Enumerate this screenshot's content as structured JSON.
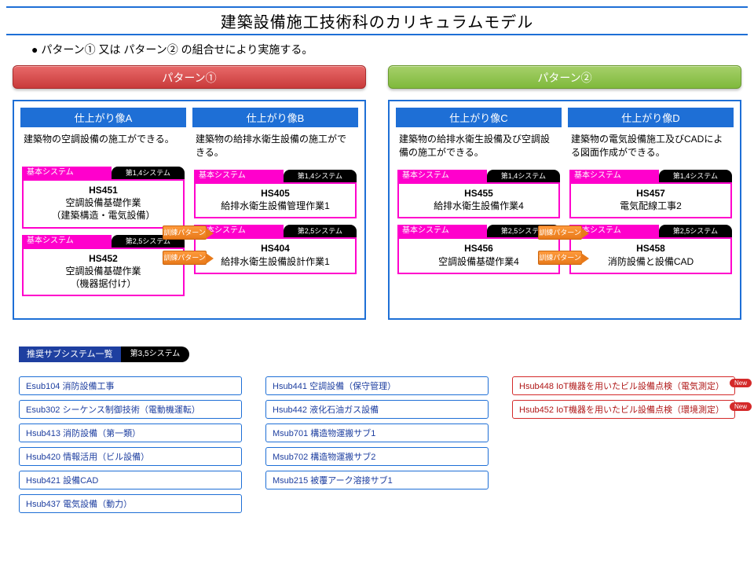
{
  "title": "建築設備施工技術科のカリキュラムモデル",
  "subtitle": "● パターン① 又は パターン② の組合せにより実施する。",
  "colors": {
    "primary_blue": "#1e6fd6",
    "dark_blue": "#1e3fa0",
    "magenta": "#ff00cc",
    "black": "#000000",
    "red_header": "#c83a3a",
    "green_header": "#7fb93c",
    "orange": "#e87a1a",
    "badge_red": "#d42a2a"
  },
  "tags": {
    "base_label": "基本システム",
    "sys14": "第1,4システム",
    "sys25": "第2,5システム",
    "sys35": "第3,5システム"
  },
  "connector_label": "訓練パターン",
  "patterns": [
    {
      "header": "パターン①",
      "header_class": "ph-red",
      "cols": [
        {
          "header": "仕上がり像A",
          "desc": "建築物の空調設備の施工ができる。",
          "modules": [
            {
              "sys": "sys14",
              "code": "HS451",
              "name": "空調設備基礎作業\n（建築構造・電気設備）"
            },
            {
              "sys": "sys25",
              "code": "HS452",
              "name": "空調設備基礎作業\n（機器据付け）"
            }
          ]
        },
        {
          "header": "仕上がり像B",
          "desc": "建築物の給排水衛生設備の施工ができる。",
          "modules": [
            {
              "sys": "sys14",
              "code": "HS405",
              "name": "給排水衛生設備管理作業1"
            },
            {
              "sys": "sys25",
              "code": "HS404",
              "name": "給排水衛生設備設計作業1"
            }
          ]
        }
      ]
    },
    {
      "header": "パターン②",
      "header_class": "ph-green",
      "cols": [
        {
          "header": "仕上がり像C",
          "desc": "建築物の給排水衛生設備及び空調設備の施工ができる。",
          "modules": [
            {
              "sys": "sys14",
              "code": "HS455",
              "name": "給排水衛生設備作業4"
            },
            {
              "sys": "sys25",
              "code": "HS456",
              "name": "空調設備基礎作業4"
            }
          ]
        },
        {
          "header": "仕上がり像D",
          "desc": "建築物の電気設備施工及びCADによる図面作成ができる。",
          "modules": [
            {
              "sys": "sys14",
              "code": "HS457",
              "name": "電気配線工事2"
            },
            {
              "sys": "sys25",
              "code": "HS458",
              "name": "消防設備と設備CAD"
            }
          ]
        }
      ]
    }
  ],
  "rec_header": {
    "blue": "推奨サブシステム一覧",
    "black": "第3,5システム"
  },
  "rec_cols": [
    [
      "Esub104 消防設備工事",
      "Esub302 シーケンス制御技術（電動機運転）",
      "Hsub413 消防設備（第一類）",
      "Hsub420 情報活用（ビル設備）",
      "Hsub421 設備CAD",
      "Hsub437 電気設備（動力）"
    ],
    [
      "Hsub441 空調設備（保守管理）",
      "Hsub442 液化石油ガス設備",
      "Msub701 構造物運搬サブ1",
      "Msub702 構造物運搬サブ2",
      "Msub215 被覆アーク溶接サブ1"
    ],
    [
      {
        "text": "Hsub448 IoT機器を用いたビル設備点検（電気測定）",
        "new": true
      },
      {
        "text": "Hsub452 IoT機器を用いたビル設備点検（環境測定）",
        "new": true
      }
    ]
  ],
  "new_label": "New"
}
